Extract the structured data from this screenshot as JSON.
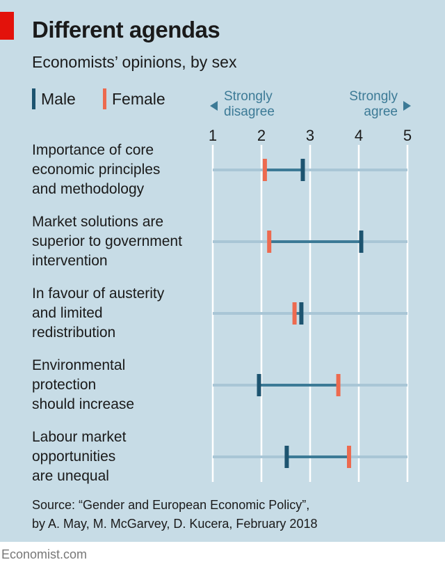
{
  "header": {
    "title": "Different agendas",
    "subtitle": "Economists’ opinions, by sex"
  },
  "legend": {
    "male_label": "Male",
    "female_label": "Female"
  },
  "scale": {
    "left_line1": "Strongly",
    "left_line2": "disagree",
    "right_line1": "Strongly",
    "right_line2": "agree"
  },
  "colors": {
    "male": "#1d5470",
    "female": "#ed6a4f",
    "connector": "#3c7a96",
    "track": "#a9c6d6",
    "gridline": "#ffffff",
    "panel": "#c7dce6"
  },
  "chart_data": {
    "type": "dot-range",
    "title": "Different agendas",
    "subtitle": "Economists’ opinions, by sex",
    "xlim": [
      1,
      5
    ],
    "ticks": [
      "1",
      "2",
      "3",
      "4",
      "5"
    ],
    "series": [
      {
        "name": "Male",
        "values": [
          2.85,
          4.05,
          2.82,
          1.95,
          2.52
        ]
      },
      {
        "name": "Female",
        "values": [
          2.07,
          2.16,
          2.68,
          3.58,
          3.8
        ]
      }
    ],
    "categories": [
      {
        "lines": [
          "Importance of core",
          "economic principles",
          "and methodology"
        ]
      },
      {
        "lines": [
          "Market solutions are",
          "superior to government",
          "intervention"
        ]
      },
      {
        "lines": [
          "In favour of austerity",
          "and limited",
          "redistribution"
        ]
      },
      {
        "lines": [
          "Environmental",
          "protection",
          "should increase"
        ]
      },
      {
        "lines": [
          "Labour market",
          "opportunities",
          "are unequal"
        ]
      }
    ]
  },
  "source": {
    "line1": "Source: “Gender and European Economic Policy”,",
    "line2": "by A. May, M. McGarvey, D. Kucera, February 2018"
  },
  "footer": {
    "brand": "Economist.com"
  }
}
